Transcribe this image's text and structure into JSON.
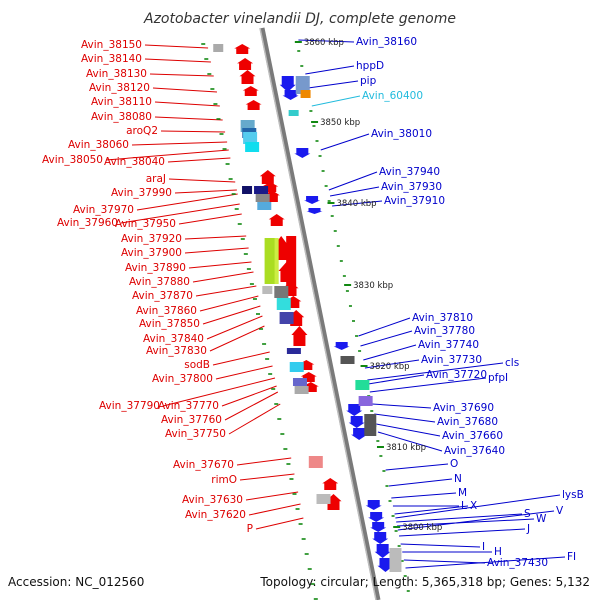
{
  "title": "Azotobacter vinelandii DJ, complete genome",
  "footer": {
    "accession": "Accession: NC_012560",
    "topology": "Topology: circular; Length: 5,365,318 bp; Genes: 5,132"
  },
  "colors": {
    "left_label": "#dd0000",
    "right_label": "#0000cc",
    "highlight_label": "#22bbdd",
    "forward_gene": "#ee0000",
    "reverse_gene": "#1a1aee",
    "tick": "#118811",
    "axis": "#888888"
  },
  "kbp_ticks": [
    "3860 kbp",
    "3850 kbp",
    "3840 kbp",
    "3830 kbp",
    "3820 kbp",
    "3810 kbp",
    "3800 kbp"
  ],
  "left_labels": [
    "Avin_38150",
    "Avin_38140",
    "Avin_38130",
    "Avin_38120",
    "Avin_38110",
    "Avin_38080",
    "aroQ2",
    "Avin_38060",
    "Avin_38050",
    "Avin_38040",
    "araJ",
    "Avin_37990",
    "Avin_37970",
    "Avin_37960",
    "Avin_37950",
    "Avin_37920",
    "Avin_37900",
    "Avin_37890",
    "Avin_37880",
    "Avin_37870",
    "Avin_37860",
    "Avin_37850",
    "Avin_37840",
    "Avin_37830",
    "sodB",
    "Avin_37800",
    "Avin_37790",
    "Avin_37770",
    "Avin_37760",
    "Avin_37750",
    "Avin_37670",
    "rimO",
    "Avin_37630",
    "Avin_37620",
    "P"
  ],
  "right_labels": [
    "Avin_38160",
    "hppD",
    "pip",
    "Avin_60400",
    "Avin_38010",
    "Avin_37940",
    "Avin_37930",
    "Avin_37910",
    "Avin_37810",
    "Avin_37780",
    "Avin_37740",
    "Avin_37730",
    "cls",
    "Avin_37720",
    "pfpI",
    "Avin_37690",
    "Avin_37680",
    "Avin_37660",
    "Avin_37640",
    "O",
    "N",
    "M",
    "L",
    "X",
    "lysB",
    "S",
    "W",
    "V",
    "J",
    "I",
    "H",
    "Avin_37430",
    "FI"
  ]
}
